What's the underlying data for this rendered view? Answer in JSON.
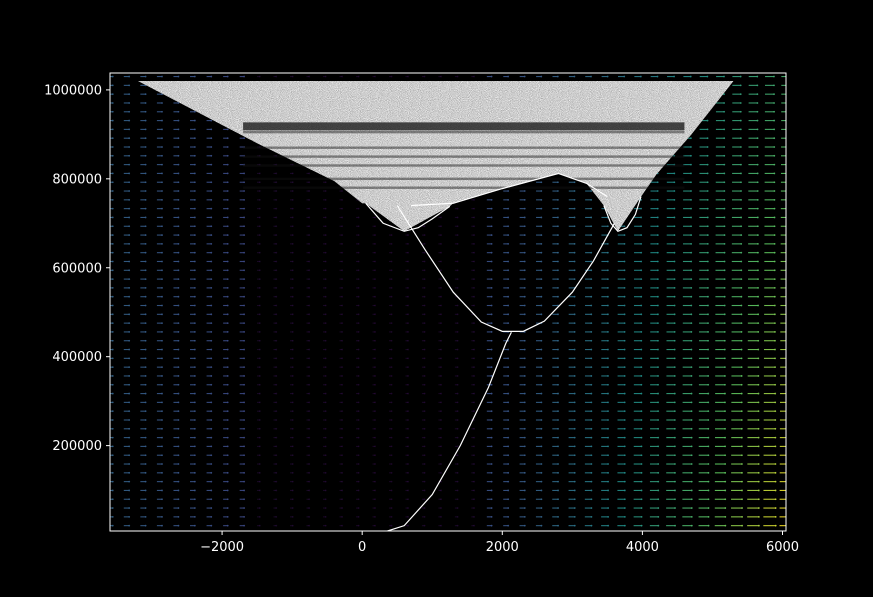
{
  "chart_data": {
    "type": "scatter",
    "title": "",
    "xlabel": "",
    "ylabel": "",
    "xlim": [
      -3600,
      6050
    ],
    "ylim": [
      8000,
      1038000
    ],
    "x_ticks": [
      -2000,
      0,
      2000,
      4000,
      6000
    ],
    "x_tick_labels": [
      "−2000",
      "0",
      "2000",
      "4000",
      "6000"
    ],
    "y_ticks": [
      200000,
      400000,
      600000,
      800000,
      1000000
    ],
    "y_tick_labels": [
      "200000",
      "400000",
      "600000",
      "800000",
      "1000000"
    ],
    "background_color": "#000000",
    "foreground_color": "#ffffff",
    "grid": false,
    "legend": "none",
    "layers": {
      "quiver_field": {
        "description_colormap": "viridis",
        "x_range": [
          -3600,
          6050
        ],
        "y_range": [
          20000,
          1030000
        ],
        "colormap_stops": [
          "#440154",
          "#3b528b",
          "#21918c",
          "#5ec962",
          "#fde725"
        ]
      },
      "envelope_region": {
        "color": "#ffffff",
        "left_edge": [
          [
            -3200,
            1020000
          ],
          [
            -1500,
            880000
          ],
          [
            -400,
            795000
          ],
          [
            0,
            745000
          ]
        ],
        "right_edge": [
          [
            3800,
            745000
          ],
          [
            4200,
            810000
          ],
          [
            4700,
            900000
          ],
          [
            5300,
            1020000
          ]
        ],
        "top": 1020000,
        "dark_bands_y": [
          918000,
          905000,
          870000,
          850000,
          830000,
          800000,
          780000
        ]
      },
      "curves": [
        {
          "name": "lower-branch",
          "points": [
            [
              200,
              0
            ],
            [
              600,
              20000
            ],
            [
              1000,
              90000
            ],
            [
              1400,
              200000
            ],
            [
              1800,
              330000
            ],
            [
              2050,
              430000
            ],
            [
              2130,
              455000
            ]
          ]
        },
        {
          "name": "middle-bowl",
          "points": [
            [
              500,
              740000
            ],
            [
              900,
              640000
            ],
            [
              1300,
              545000
            ],
            [
              1700,
              478000
            ],
            [
              2000,
              457000
            ],
            [
              2300,
              457000
            ],
            [
              2600,
              480000
            ],
            [
              3000,
              545000
            ],
            [
              3300,
              615000
            ],
            [
              3600,
              700000
            ]
          ]
        },
        {
          "name": "small-bowl-left",
          "points": [
            [
              50,
              745000
            ],
            [
              300,
              700000
            ],
            [
              600,
              682000
            ],
            [
              800,
              690000
            ],
            [
              1000,
              710000
            ],
            [
              1250,
              738000
            ]
          ]
        },
        {
          "name": "small-bowl-right",
          "points": [
            [
              3450,
              740000
            ],
            [
              3550,
              700000
            ],
            [
              3650,
              682000
            ],
            [
              3780,
              690000
            ],
            [
              3900,
              720000
            ],
            [
              3980,
              760000
            ]
          ]
        },
        {
          "name": "peak-arch",
          "points": [
            [
              700,
              740000
            ],
            [
              1300,
              745000
            ],
            [
              2000,
              778000
            ],
            [
              2800,
              812000
            ],
            [
              3200,
              790000
            ],
            [
              3500,
              760000
            ]
          ]
        }
      ]
    }
  }
}
